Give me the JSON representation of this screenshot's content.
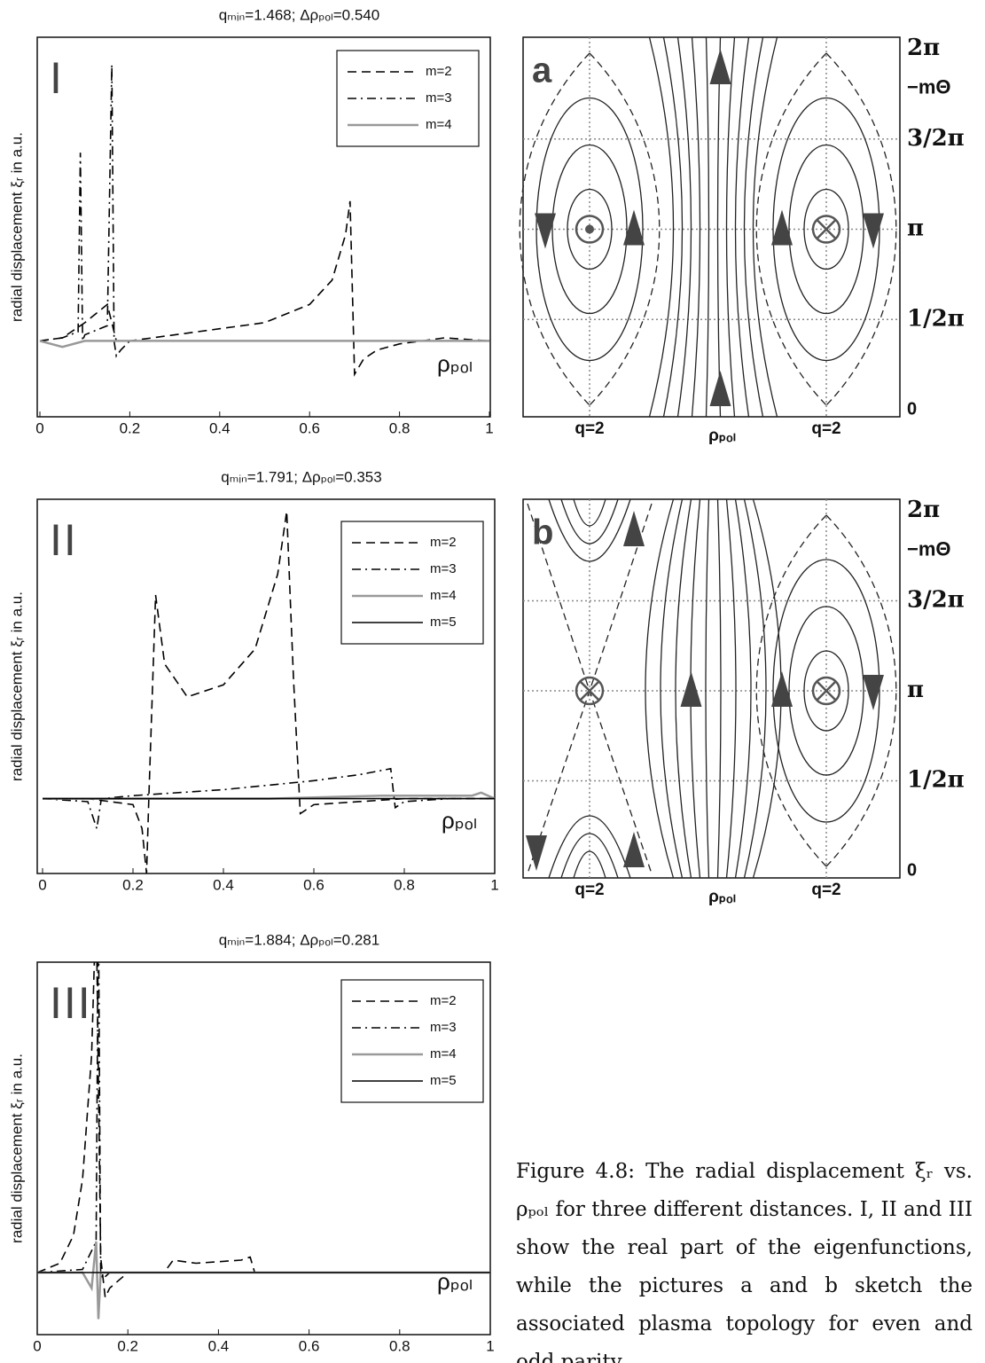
{
  "chart_data": [
    {
      "type": "line",
      "label": "I",
      "title": "qₘᵢₙ=1.468;  Δρₚₒₗ=0.540",
      "y_label": "radial displacement ξᵣ in a.u.",
      "x_label": "ρₚₒₗ",
      "xlim": [
        0,
        1
      ],
      "xticks": [
        0,
        0.2,
        0.4,
        0.6,
        0.8,
        1
      ],
      "ylim": [
        -0.25,
        1
      ],
      "legend": "upper right",
      "series": [
        {
          "name": "m=2",
          "color": "#000000",
          "style": "dashed",
          "x": [
            0,
            0.05,
            0.08,
            0.1,
            0.15,
            0.17,
            0.2,
            0.3,
            0.4,
            0.5,
            0.6,
            0.65,
            0.68,
            0.69,
            0.7,
            0.72,
            0.75,
            0.8,
            0.9,
            1
          ],
          "values": [
            0,
            0.01,
            0.04,
            0.06,
            0.12,
            0,
            0,
            0.02,
            0.04,
            0.06,
            0.12,
            0.2,
            0.35,
            0.46,
            -0.11,
            -0.06,
            -0.03,
            -0.01,
            0.01,
            0
          ]
        },
        {
          "name": "m=3",
          "color": "#000000",
          "style": "dash-dot",
          "x": [
            0,
            0.05,
            0.085,
            0.09,
            0.095,
            0.1,
            0.15,
            0.16,
            0.165,
            0.17,
            0.18,
            0.2,
            0.3,
            1
          ],
          "values": [
            0,
            0.01,
            0.03,
            0.62,
            0,
            0.02,
            0.05,
            0.91,
            0,
            -0.05,
            -0.03,
            0,
            0,
            0
          ]
        },
        {
          "name": "m=4",
          "color": "#999999",
          "style": "solid",
          "x": [
            0,
            0.05,
            0.1,
            0.5,
            1
          ],
          "values": [
            0,
            -0.02,
            0,
            0,
            0
          ]
        }
      ]
    },
    {
      "type": "line",
      "label": "II",
      "title": "qₘᵢₙ=1.791;  Δρₚₒₗ=0.353",
      "y_label": "radial displacement ξᵣ in a.u.",
      "x_label": "ρₚₒₗ",
      "xlim": [
        0,
        1
      ],
      "xticks": [
        0,
        0.2,
        0.4,
        0.6,
        0.8,
        1
      ],
      "ylim": [
        -0.25,
        1
      ],
      "legend": "upper right",
      "series": [
        {
          "name": "m=2",
          "color": "#000000",
          "style": "dashed",
          "x": [
            0,
            0.1,
            0.2,
            0.22,
            0.23,
            0.235,
            0.25,
            0.27,
            0.32,
            0.4,
            0.47,
            0.52,
            0.54,
            0.555,
            0.57,
            0.6,
            0.7,
            0.8,
            1
          ],
          "values": [
            0,
            0,
            -0.02,
            -0.1,
            -0.25,
            0,
            0.68,
            0.45,
            0.34,
            0.38,
            0.5,
            0.75,
            0.96,
            0.4,
            -0.05,
            -0.02,
            -0.01,
            0,
            0
          ]
        },
        {
          "name": "m=3",
          "color": "#000000",
          "style": "dash-dot",
          "x": [
            0,
            0.1,
            0.12,
            0.13,
            0.2,
            0.4,
            0.6,
            0.7,
            0.77,
            0.78,
            0.8,
            0.9,
            1
          ],
          "values": [
            0,
            -0.01,
            -0.1,
            0,
            0.01,
            0.03,
            0.06,
            0.08,
            0.1,
            -0.03,
            -0.01,
            0,
            0
          ]
        },
        {
          "name": "m=4",
          "color": "#999999",
          "style": "solid",
          "x": [
            0,
            0.5,
            0.75,
            0.95,
            0.97,
            1
          ],
          "values": [
            0,
            0,
            0.01,
            0.01,
            0.02,
            0
          ]
        },
        {
          "name": "m=5",
          "color": "#000000",
          "style": "solid",
          "x": [
            0,
            1
          ],
          "values": [
            0,
            0
          ]
        }
      ]
    },
    {
      "type": "line",
      "label": "III",
      "title": "qₘᵢₙ=1.884;  Δρₚₒₗ=0.281",
      "y_label": "radial displacement ξᵣ in a.u.",
      "x_label": "ρₚₒₗ",
      "xlim": [
        0,
        1
      ],
      "xticks": [
        0,
        0.2,
        0.4,
        0.6,
        0.8,
        1
      ],
      "ylim": [
        -0.2,
        1
      ],
      "legend": "upper right",
      "series": [
        {
          "name": "m=2",
          "color": "#000000",
          "style": "dashed",
          "x": [
            0,
            0.05,
            0.08,
            0.1,
            0.12,
            0.13,
            0.14,
            0.15,
            0.16,
            0.2,
            0.28,
            0.3,
            0.35,
            0.45,
            0.47,
            0.48,
            0.5,
            1
          ],
          "values": [
            0,
            0.03,
            0.12,
            0.3,
            0.7,
            1.2,
            0.05,
            -0.08,
            -0.05,
            0,
            0,
            0.04,
            0.03,
            0.04,
            0.05,
            0,
            0,
            0
          ]
        },
        {
          "name": "m=3",
          "color": "#000000",
          "style": "dash-dot",
          "x": [
            0,
            0.1,
            0.13,
            0.135,
            0.14,
            0.145,
            0.16,
            0.2,
            1
          ],
          "values": [
            0,
            0.01,
            0.1,
            1.2,
            0,
            -0.02,
            0,
            0,
            0
          ]
        },
        {
          "name": "m=4",
          "color": "#999999",
          "style": "solid",
          "x": [
            0,
            0.1,
            0.12,
            0.13,
            0.135,
            0.14,
            0.2,
            1
          ],
          "values": [
            0,
            0,
            -0.05,
            0.1,
            -0.15,
            0,
            0,
            0
          ]
        },
        {
          "name": "m=5",
          "color": "#000000",
          "style": "solid",
          "x": [
            0,
            1
          ],
          "values": [
            0,
            0
          ]
        }
      ]
    }
  ],
  "diagrams": [
    {
      "label": "a",
      "y_labels": [
        "2π",
        "−mΘ",
        "3/2π",
        "π",
        "1/2π",
        "0"
      ],
      "x_labels": [
        "q=2",
        "ρₚₒₗ",
        "q=2"
      ]
    },
    {
      "label": "b",
      "y_labels": [
        "2π",
        "−mΘ",
        "3/2π",
        "π",
        "1/2π",
        "0"
      ],
      "x_labels": [
        "q=2",
        "ρₚₒₗ",
        "q=2"
      ]
    }
  ],
  "caption": "Figure 4.8: The radial displacement ξᵣ vs. ρₚₒₗ for three different distances. I, II and III show the real part of the eigenfunctions, while the pictures a and b sketch the associated plasma topology for even and odd parity."
}
